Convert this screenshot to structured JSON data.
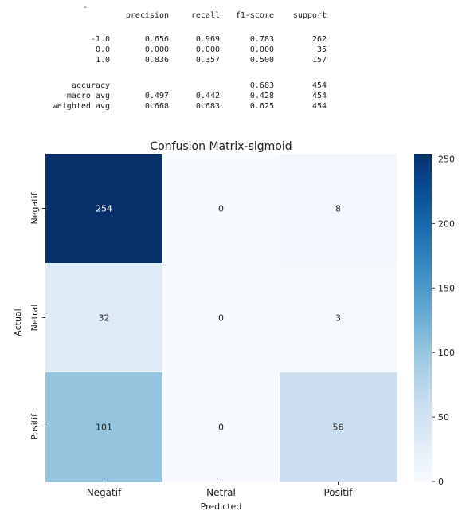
{
  "report": {
    "dash": "-",
    "header": [
      "precision",
      "recall",
      "f1-score",
      "support"
    ],
    "rows": [
      {
        "label": "-1.0",
        "cells": [
          "0.656",
          "0.969",
          "0.783",
          "262"
        ]
      },
      {
        "label": "0.0",
        "cells": [
          "0.000",
          "0.000",
          "0.000",
          "35"
        ]
      },
      {
        "label": "1.0",
        "cells": [
          "0.836",
          "0.357",
          "0.500",
          "157"
        ]
      },
      {
        "label": "accuracy",
        "cells": [
          "",
          "",
          "0.683",
          "454"
        ]
      },
      {
        "label": "macro avg",
        "cells": [
          "0.497",
          "0.442",
          "0.428",
          "454"
        ]
      },
      {
        "label": "weighted avg",
        "cells": [
          "0.668",
          "0.683",
          "0.625",
          "454"
        ]
      }
    ]
  },
  "chart_data": {
    "type": "heatmap",
    "title": "Confusion Matrix-sigmoid",
    "xlabel": "Predicted",
    "ylabel": "Actual",
    "x_categories": [
      "Negatif",
      "Netral",
      "Positif"
    ],
    "y_categories": [
      "Negatif",
      "Netral",
      "Positif"
    ],
    "matrix": [
      [
        254,
        0,
        8
      ],
      [
        32,
        0,
        3
      ],
      [
        101,
        0,
        56
      ]
    ],
    "colormap": "Blues",
    "colorbar": {
      "min": 0,
      "max": 254,
      "ticks": [
        0,
        50,
        100,
        150,
        200,
        250
      ]
    },
    "colors": {
      "low": "#f7fbff",
      "high": "#08306b"
    }
  }
}
